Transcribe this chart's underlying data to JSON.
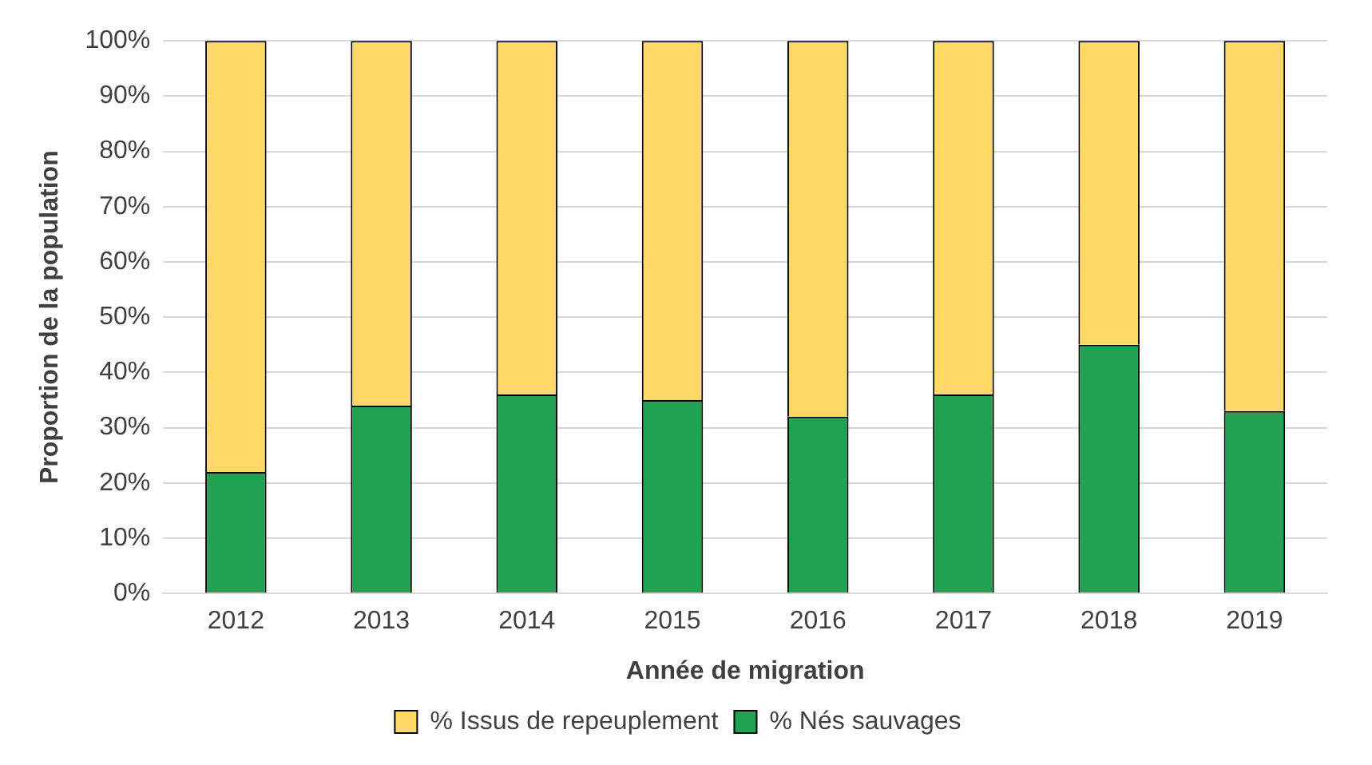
{
  "chart_data": {
    "type": "bar",
    "stacked": true,
    "xlabel": "Année de migration",
    "ylabel": "Proportion de la population",
    "categories": [
      "2012",
      "2013",
      "2014",
      "2015",
      "2016",
      "2017",
      "2018",
      "2019"
    ],
    "series": [
      {
        "name": "% Nés sauvages",
        "color": "#21a152",
        "values": [
          22,
          34,
          36,
          35,
          32,
          36,
          45,
          33
        ]
      },
      {
        "name": "% Issus de repeuplement",
        "color": "#ffd966",
        "values": [
          78,
          66,
          64,
          65,
          68,
          64,
          55,
          67
        ]
      }
    ],
    "ylim": [
      0,
      100
    ],
    "yticks": [
      {
        "value": 0,
        "label": "0%"
      },
      {
        "value": 10,
        "label": "10%"
      },
      {
        "value": 20,
        "label": "20%"
      },
      {
        "value": 30,
        "label": "30%"
      },
      {
        "value": 40,
        "label": "40%"
      },
      {
        "value": 50,
        "label": "50%"
      },
      {
        "value": 60,
        "label": "60%"
      },
      {
        "value": 70,
        "label": "70%"
      },
      {
        "value": 80,
        "label": "80%"
      },
      {
        "value": 90,
        "label": "90%"
      },
      {
        "value": 100,
        "label": "100%"
      }
    ],
    "grid": "y",
    "legend": "bottom"
  }
}
